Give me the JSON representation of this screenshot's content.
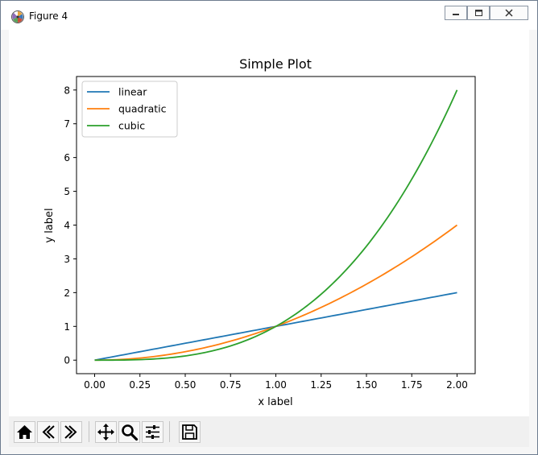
{
  "window": {
    "title": "Figure 4"
  },
  "toolbar": {
    "buttons": [
      "home-icon",
      "back-icon",
      "forward-icon",
      "pan-icon",
      "zoom-icon",
      "configure-subplots-icon",
      "save-icon"
    ]
  },
  "chart_data": {
    "type": "line",
    "title": "Simple Plot",
    "xlabel": "x label",
    "ylabel": "y label",
    "xlim": [
      -0.1,
      2.1
    ],
    "ylim": [
      -0.4,
      8.4
    ],
    "xticks": [
      "0.00",
      "0.25",
      "0.50",
      "0.75",
      "1.00",
      "1.25",
      "1.50",
      "1.75",
      "2.00"
    ],
    "yticks": [
      "0",
      "1",
      "2",
      "3",
      "4",
      "5",
      "6",
      "7",
      "8"
    ],
    "grid": false,
    "legend_position": "upper-left",
    "x_range": [
      0,
      2
    ],
    "num_points": 100,
    "series": [
      {
        "name": "linear",
        "power": 1,
        "color": "#1f77b4"
      },
      {
        "name": "quadratic",
        "power": 2,
        "color": "#ff7f0e"
      },
      {
        "name": "cubic",
        "power": 3,
        "color": "#2ca02c"
      }
    ]
  }
}
